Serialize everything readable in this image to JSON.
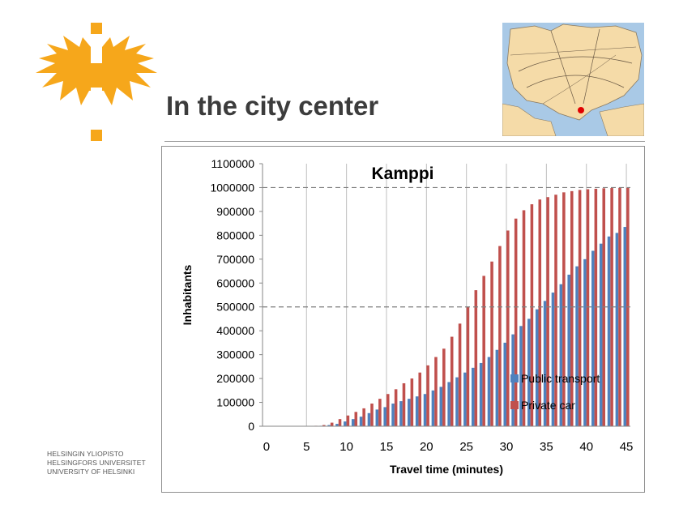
{
  "slide": {
    "title": "In the city center",
    "university_lines": [
      "HELSINGIN YLIOPISTO",
      "HELSINGFORS UNIVERSITET",
      "UNIVERSITY OF HELSINKI"
    ]
  },
  "colors": {
    "logo_orange": "#f6a71b",
    "public_transport": "#4f81bd",
    "private_car": "#c0504d",
    "map_marker": "#e00000"
  },
  "chart_data": {
    "type": "bar",
    "title": "Kamppi",
    "xlabel": "Travel time (minutes)",
    "ylabel": "Inhabitants",
    "x": [
      0,
      1,
      2,
      3,
      4,
      5,
      6,
      7,
      8,
      9,
      10,
      11,
      12,
      13,
      14,
      15,
      16,
      17,
      18,
      19,
      20,
      21,
      22,
      23,
      24,
      25,
      26,
      27,
      28,
      29,
      30,
      31,
      32,
      33,
      34,
      35,
      36,
      37,
      38,
      39,
      40,
      41,
      42,
      43,
      44,
      45
    ],
    "xticks": [
      0,
      5,
      10,
      15,
      20,
      25,
      30,
      35,
      40,
      45
    ],
    "yticks": [
      0,
      100000,
      200000,
      300000,
      400000,
      500000,
      600000,
      700000,
      800000,
      900000,
      1000000,
      1100000
    ],
    "ylim": [
      0,
      1100000
    ],
    "reference_lines": [
      500000,
      1000000
    ],
    "grid": "vertical",
    "legend_position": "bottom-right",
    "series": [
      {
        "name": "Public transport",
        "values": [
          0,
          0,
          0,
          0,
          0,
          0,
          1000,
          2000,
          5000,
          10000,
          20000,
          30000,
          40000,
          55000,
          70000,
          80000,
          95000,
          105000,
          115000,
          125000,
          135000,
          150000,
          165000,
          185000,
          205000,
          225000,
          245000,
          265000,
          290000,
          320000,
          350000,
          385000,
          420000,
          450000,
          490000,
          525000,
          560000,
          595000,
          635000,
          670000,
          700000,
          735000,
          765000,
          795000,
          810000,
          835000
        ]
      },
      {
        "name": "Private car",
        "values": [
          0,
          0,
          0,
          0,
          0,
          0,
          2000,
          5000,
          15000,
          30000,
          45000,
          60000,
          75000,
          95000,
          115000,
          135000,
          155000,
          180000,
          200000,
          225000,
          255000,
          290000,
          325000,
          375000,
          430000,
          500000,
          570000,
          630000,
          690000,
          755000,
          820000,
          870000,
          905000,
          930000,
          950000,
          960000,
          970000,
          980000,
          985000,
          990000,
          993000,
          995000,
          997000,
          998000,
          999000,
          1000000
        ]
      }
    ]
  }
}
